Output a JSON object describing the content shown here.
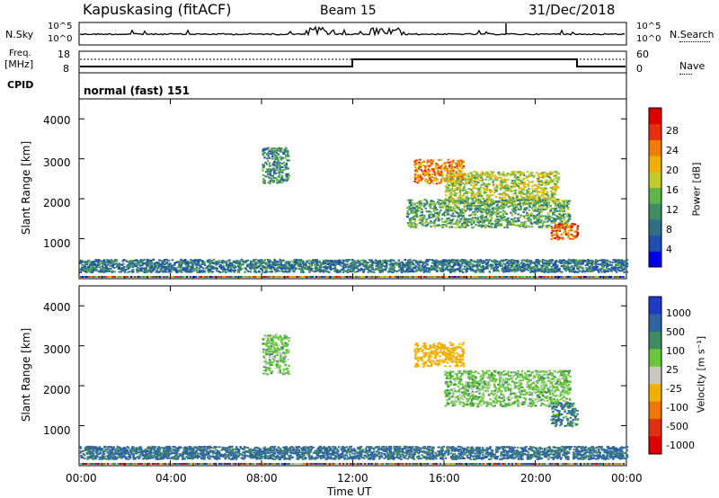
{
  "header": {
    "station": "Kapuskasing (fitACF)",
    "beam": "Beam 15",
    "date": "31/Dec/2018"
  },
  "left_labels": {
    "nsky": "N.Sky",
    "freq": "Freq.",
    "freq_unit": "[MHz]",
    "cpid": "CPID"
  },
  "right_labels": {
    "nsearch": "N.Search",
    "nave": "Nave"
  },
  "nsky_ticks": [
    "10^5",
    "10^0"
  ],
  "nsearch_ticks": [
    "10^5",
    "10^0"
  ],
  "freq_ticks": [
    "18",
    "8"
  ],
  "nave_ticks": [
    "60",
    "0"
  ],
  "cpid_text": "normal (fast) 151",
  "x_axis": {
    "label": "Time UT",
    "ticks": [
      "00:00",
      "04:00",
      "08:00",
      "12:00",
      "16:00",
      "20:00",
      "00:00"
    ]
  },
  "power_panel": {
    "ylabel": "Slant Range [km]",
    "yticks": [
      "4000",
      "3000",
      "2000",
      "1000"
    ],
    "colorbar_label": "Power [dB]",
    "colorbar_ticks": [
      "28",
      "24",
      "20",
      "16",
      "12",
      "8",
      "4"
    ],
    "colors": [
      "#0000ee",
      "#1e4eb0",
      "#2f6e86",
      "#3d8f63",
      "#5fb44a",
      "#bfcc2a",
      "#f0b000",
      "#f07c00",
      "#e83010",
      "#e00000"
    ]
  },
  "velocity_panel": {
    "ylabel": "Slant Range [km]",
    "yticks": [
      "4000",
      "3000",
      "2000",
      "1000"
    ],
    "colorbar_label": "Velocity [m s⁻¹]",
    "colorbar_ticks": [
      "1000",
      "500",
      "100",
      "25",
      "-25",
      "-100",
      "-500",
      "-1000"
    ],
    "colors": [
      "#1e3cc8",
      "#2f64a0",
      "#3f8c60",
      "#66c83a",
      "#c8c8c0",
      "#f0b000",
      "#f07800",
      "#e03010",
      "#e00000"
    ]
  },
  "chart_data": [
    {
      "type": "heatmap",
      "title": "",
      "xlabel": "Time UT",
      "ylabel": "Slant Range [km]",
      "xlim": [
        "00:00",
        "24:00"
      ],
      "ylim": [
        0,
        4500
      ],
      "colorbar": "Power [dB]",
      "clim": [
        0,
        30
      ],
      "regions": [
        {
          "t": [
            "08:00",
            "09:10"
          ],
          "range": [
            2400,
            3300
          ],
          "power": 10
        },
        {
          "t": [
            "14:40",
            "16:50"
          ],
          "range": [
            2400,
            3000
          ],
          "power": 22
        },
        {
          "t": [
            "16:00",
            "21:00"
          ],
          "range": [
            1900,
            2700
          ],
          "power": 16
        },
        {
          "t": [
            "14:20",
            "21:30"
          ],
          "range": [
            1300,
            2000
          ],
          "power": 12
        },
        {
          "t": [
            "20:40",
            "21:50"
          ],
          "range": [
            1000,
            1400
          ],
          "power": 24
        },
        {
          "t": [
            "00:00",
            "24:00"
          ],
          "range": [
            180,
            500
          ],
          "power": 8
        }
      ]
    },
    {
      "type": "heatmap",
      "title": "",
      "xlabel": "Time UT",
      "ylabel": "Slant Range [km]",
      "xlim": [
        "00:00",
        "24:00"
      ],
      "ylim": [
        0,
        4500
      ],
      "colorbar": "Velocity [m s⁻¹]",
      "clim": [
        -1000,
        1000
      ],
      "regions": [
        {
          "t": [
            "08:00",
            "09:10"
          ],
          "range": [
            2300,
            3300
          ],
          "velocity": 0
        },
        {
          "t": [
            "14:40",
            "16:50"
          ],
          "range": [
            2500,
            3100
          ],
          "velocity": -300
        },
        {
          "t": [
            "16:00",
            "21:30"
          ],
          "range": [
            1500,
            2400
          ],
          "velocity": 0
        },
        {
          "t": [
            "20:40",
            "21:50"
          ],
          "range": [
            1000,
            1600
          ],
          "velocity": 100
        },
        {
          "t": [
            "00:00",
            "24:00"
          ],
          "range": [
            180,
            500
          ],
          "velocity": 150
        }
      ]
    }
  ]
}
